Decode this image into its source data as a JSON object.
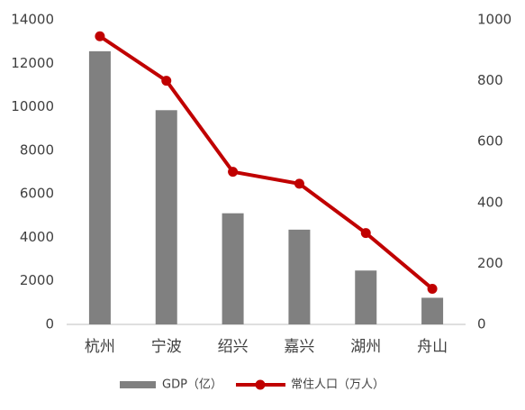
{
  "chart_data": {
    "type": "bar",
    "categories": [
      "杭州",
      "宁波",
      "绍兴",
      "嘉兴",
      "湖州",
      "舟山"
    ],
    "series": [
      {
        "name": "GDP（亿）",
        "type": "bar",
        "color": "#808080",
        "values": [
          12556,
          9846,
          5108,
          4355,
          2476,
          1224
        ]
      },
      {
        "name": "常住人口（万人）",
        "type": "line",
        "axis": "y2",
        "color": "#c00000",
        "values": [
          946,
          800,
          501,
          462,
          300,
          117
        ]
      }
    ],
    "ylim": [
      0,
      14000
    ],
    "yticks": [
      0,
      2000,
      4000,
      6000,
      8000,
      10000,
      12000,
      14000
    ],
    "y2lim": [
      0,
      1000
    ],
    "y2ticks": [
      0,
      200,
      400,
      600,
      800,
      1000
    ],
    "legend": "bottom"
  }
}
